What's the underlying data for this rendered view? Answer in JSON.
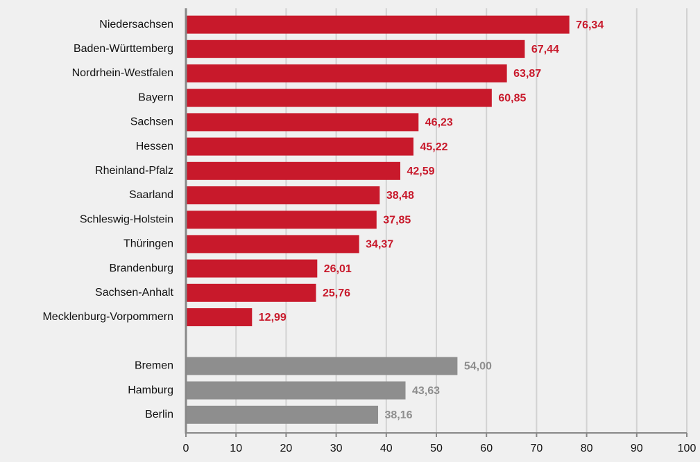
{
  "chart_data": {
    "type": "barh",
    "categories": [
      "Niedersachsen",
      "Baden-Württemberg",
      "Nordrhein-Westfalen",
      "Bayern",
      "Sachsen",
      "Hessen",
      "Rheinland-Pfalz",
      "Saarland",
      "Schleswig-Holstein",
      "Thüringen",
      "Brandenburg",
      "Sachsen-Anhalt",
      "Mecklenburg-Vorpommern",
      null,
      "Bremen",
      "Hamburg",
      "Berlin"
    ],
    "values": [
      76.34,
      67.44,
      63.87,
      60.85,
      46.23,
      45.22,
      42.59,
      38.48,
      37.85,
      34.37,
      26.01,
      25.76,
      12.99,
      null,
      54.0,
      43.63,
      38.16
    ],
    "value_labels": [
      "76,34",
      "67,44",
      "63,87",
      "60,85",
      "46,23",
      "45,22",
      "42,59",
      "38,48",
      "37,85",
      "34,37",
      "26,01",
      "25,76",
      "12,99",
      null,
      "54,00",
      "43,63",
      "38,16"
    ],
    "colors": [
      "#c8192b",
      "#c8192b",
      "#c8192b",
      "#c8192b",
      "#c8192b",
      "#c8192b",
      "#c8192b",
      "#c8192b",
      "#c8192b",
      "#c8192b",
      "#c8192b",
      "#c8192b",
      "#c8192b",
      null,
      "#8e8e8e",
      "#8e8e8e",
      "#8e8e8e"
    ],
    "xlim": [
      0,
      100
    ],
    "xticks": [
      0,
      10,
      20,
      30,
      40,
      50,
      60,
      70,
      80,
      90,
      100
    ],
    "grid": true
  }
}
